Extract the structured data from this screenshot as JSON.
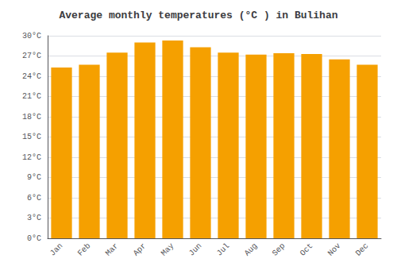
{
  "chart_data": {
    "type": "bar",
    "title": "Average monthly temperatures (°C ) in Bulihan",
    "categories": [
      "Jan",
      "Feb",
      "Mar",
      "Apr",
      "May",
      "Jun",
      "Jul",
      "Aug",
      "Sep",
      "Oct",
      "Nov",
      "Dec"
    ],
    "values": [
      25.3,
      25.7,
      27.5,
      29.0,
      29.3,
      28.3,
      27.5,
      27.2,
      27.4,
      27.3,
      26.5,
      25.7
    ],
    "color": "#F5A000",
    "ylim": [
      0,
      30
    ],
    "yticks": [
      {
        "value": 0,
        "label": "0°C"
      },
      {
        "value": 3,
        "label": "3°C"
      },
      {
        "value": 6,
        "label": "6°C"
      },
      {
        "value": 9,
        "label": "9°C"
      },
      {
        "value": 12,
        "label": "12°C"
      },
      {
        "value": 15,
        "label": "15°C"
      },
      {
        "value": 18,
        "label": "18°C"
      },
      {
        "value": 21,
        "label": "21°C"
      },
      {
        "value": 24,
        "label": "24°C"
      },
      {
        "value": 27,
        "label": "27°C"
      },
      {
        "value": 30,
        "label": "30°C"
      }
    ],
    "grid": true
  }
}
